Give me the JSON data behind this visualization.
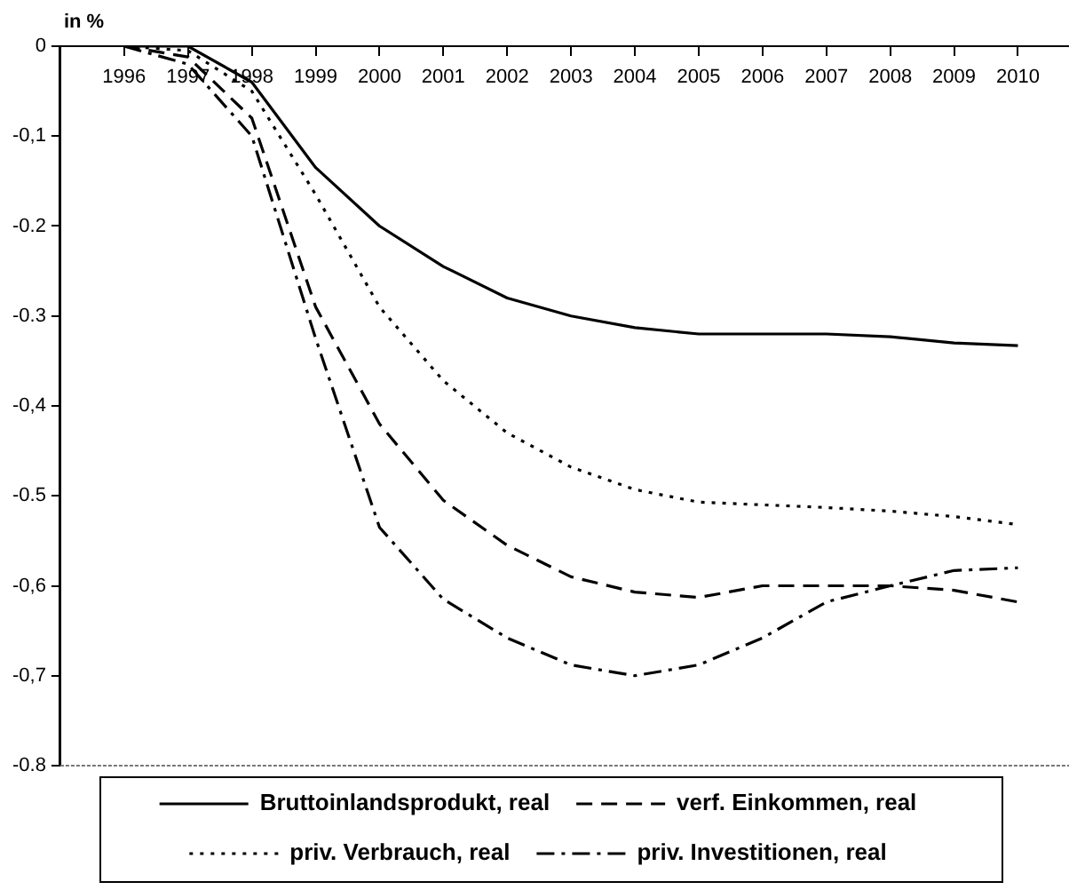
{
  "chart_data": {
    "type": "line",
    "ylabel": "in %",
    "x": [
      1996,
      1997,
      1998,
      1999,
      2000,
      2001,
      2002,
      2003,
      2004,
      2005,
      2006,
      2007,
      2008,
      2009,
      2010
    ],
    "xlim": [
      1995,
      2010.8
    ],
    "xticks": [
      1996,
      1997,
      1998,
      1999,
      2000,
      2001,
      2002,
      2003,
      2004,
      2005,
      2006,
      2007,
      2008,
      2009,
      2010
    ],
    "ylim": [
      -0.8,
      0
    ],
    "yticks": [
      {
        "value": -0.8,
        "label": "-0.8"
      },
      {
        "value": -0.7,
        "label": "-0,7"
      },
      {
        "value": -0.6,
        "label": "-0,6"
      },
      {
        "value": -0.5,
        "label": "-0.5"
      },
      {
        "value": -0.4,
        "label": "-0,4"
      },
      {
        "value": -0.3,
        "label": "-0.3"
      },
      {
        "value": -0.2,
        "label": "-0.2"
      },
      {
        "value": -0.1,
        "label": "-0,1"
      },
      0
    ],
    "grid": false,
    "legend": "bottom",
    "marker": "none",
    "series": [
      {
        "name": "Bruttoinlandsprodukt, real",
        "color": "#000000",
        "line_style": "solid",
        "values": [
          0,
          0,
          -0.04,
          -0.135,
          -0.2,
          -0.245,
          -0.28,
          -0.3,
          -0.313,
          -0.32,
          -0.32,
          -0.32,
          -0.323,
          -0.33,
          -0.333
        ]
      },
      {
        "name": "verf. Einkommen, real",
        "color": "#000000",
        "line_style": "dashed",
        "values": [
          0,
          -0.012,
          -0.08,
          -0.29,
          -0.42,
          -0.505,
          -0.555,
          -0.59,
          -0.607,
          -0.613,
          -0.6,
          -0.6,
          -0.6,
          -0.605,
          -0.618
        ]
      },
      {
        "name": "priv. Verbrauch, real",
        "color": "#000000",
        "line_style": "dotted",
        "values": [
          0,
          -0.005,
          -0.05,
          -0.165,
          -0.29,
          -0.372,
          -0.43,
          -0.468,
          -0.493,
          -0.507,
          -0.51,
          -0.513,
          -0.517,
          -0.523,
          -0.532
        ]
      },
      {
        "name": "priv. Investitionen, real",
        "color": "#000000",
        "line_style": "dashdot",
        "values": [
          0,
          -0.02,
          -0.1,
          -0.325,
          -0.535,
          -0.615,
          -0.658,
          -0.688,
          -0.7,
          -0.688,
          -0.658,
          -0.618,
          -0.6,
          -0.583,
          -0.58
        ]
      }
    ]
  }
}
